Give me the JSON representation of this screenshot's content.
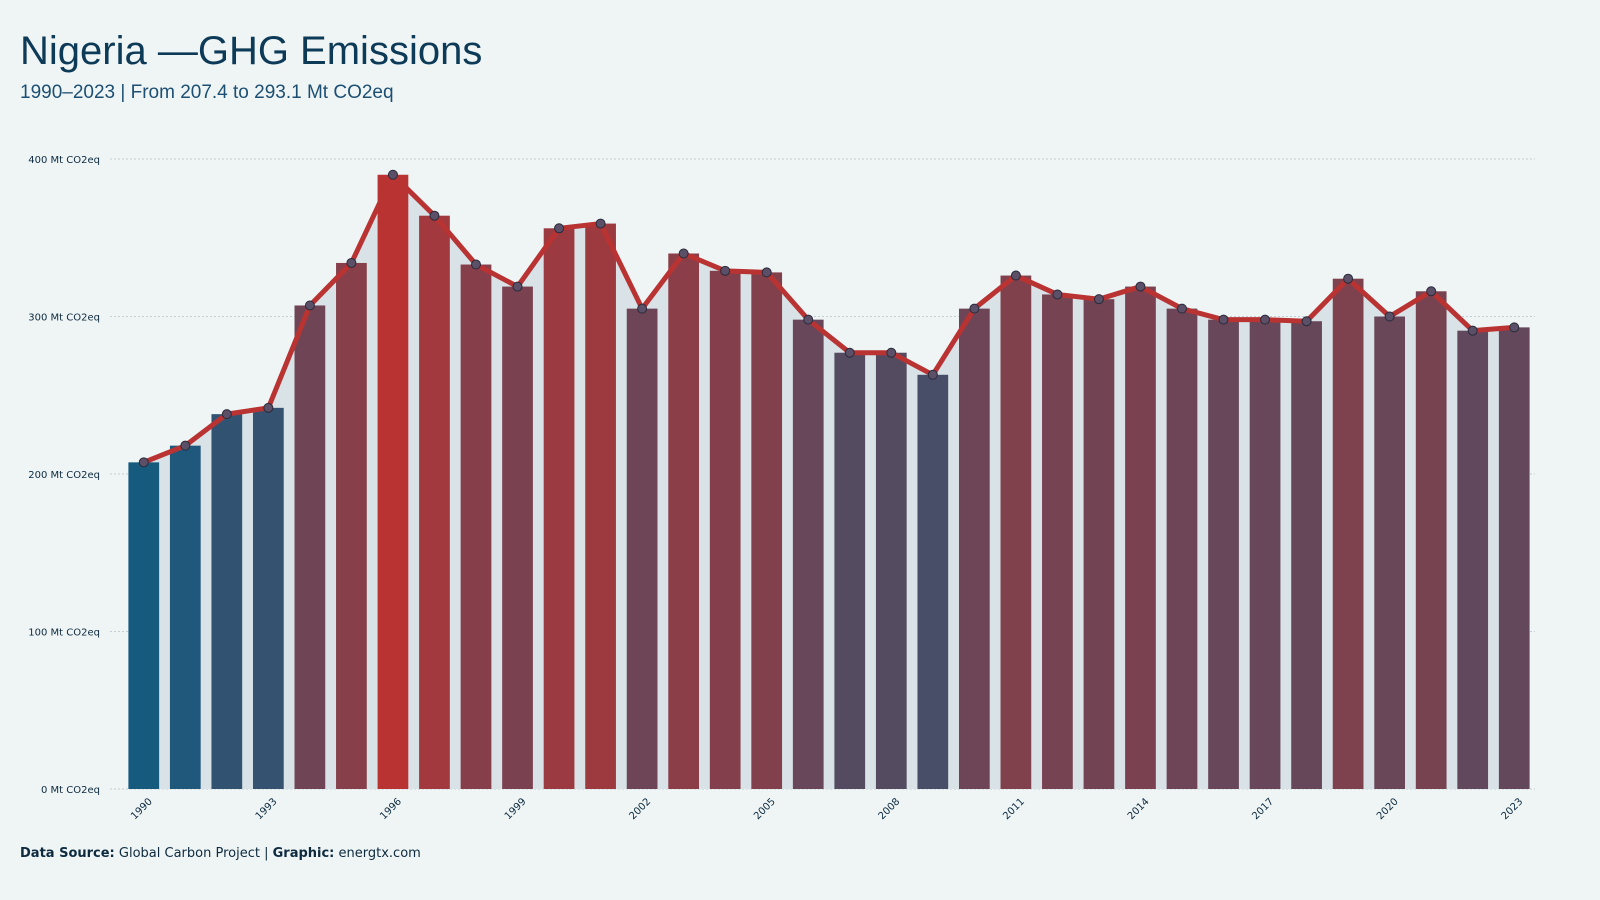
{
  "chart_data": {
    "type": "bar-line",
    "title": "Nigeria —GHG Emissions",
    "subtitle": "1990–2023 | From 207.4 to 293.1 Mt CO2eq",
    "categories": [
      "1990",
      null,
      null,
      "1993",
      null,
      null,
      "1996",
      null,
      null,
      "1999",
      null,
      null,
      "2002",
      null,
      null,
      "2005",
      null,
      null,
      "2008",
      null,
      null,
      "2011",
      null,
      null,
      "2014",
      null,
      null,
      "2017",
      null,
      null,
      "2020",
      null,
      null,
      "2023"
    ],
    "values": [
      207.4,
      218,
      238,
      242,
      307,
      334,
      390,
      364,
      333,
      319,
      356,
      359,
      305,
      340,
      329,
      328,
      298,
      277,
      277,
      263,
      305,
      326,
      314,
      311,
      319,
      305,
      298,
      298,
      297,
      324,
      300,
      316,
      291,
      293.1
    ],
    "ylim": [
      0,
      400
    ],
    "yticks": [
      {
        "value": 0,
        "label": "0 Mt CO2eq"
      },
      {
        "value": 100,
        "label": "100 Mt CO2eq"
      },
      {
        "value": 200,
        "label": "200 Mt CO2eq"
      },
      {
        "value": 300,
        "label": "300 Mt CO2eq"
      },
      {
        "value": 400,
        "label": "400 Mt CO2eq"
      }
    ],
    "grid": true,
    "color_low": "#165a7e",
    "color_high": "#b93333",
    "line_color": "#b93333",
    "area_color": "#d9e3e7",
    "point_color": "#5b5067",
    "source_label": "Data Source:",
    "source": "Global Carbon Project |",
    "graphic_label": "Graphic:",
    "graphic": "energtx.com"
  }
}
